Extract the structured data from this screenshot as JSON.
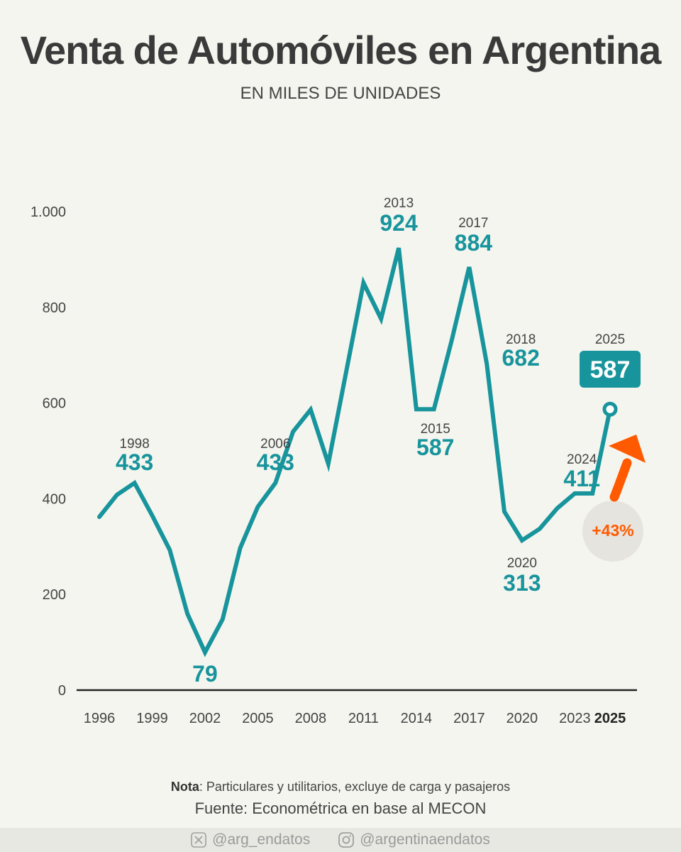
{
  "header": {
    "title": "Venta de Automóviles en Argentina",
    "subtitle": "EN MILES DE UNIDADES"
  },
  "chart_data": {
    "type": "line",
    "title": "Venta de Automóviles en Argentina",
    "subtitle": "EN MILES DE UNIDADES",
    "xlabel": "",
    "ylabel": "",
    "ylim": [
      0,
      1000
    ],
    "yticks": [
      0,
      200,
      400,
      600,
      800,
      1000
    ],
    "ytick_labels": [
      "0",
      "200",
      "400",
      "600",
      "800",
      "1.000"
    ],
    "xticks": [
      1996,
      1999,
      2002,
      2005,
      2008,
      2011,
      2014,
      2017,
      2020,
      2023,
      2025
    ],
    "xtick_labels": [
      "1996",
      "1999",
      "2002",
      "2005",
      "2008",
      "2011",
      "2014",
      "2017",
      "2020",
      "2023",
      "2025"
    ],
    "highlight_tick": "2025",
    "grid": false,
    "series": [
      {
        "color": "#17949c",
        "x": [
          1996,
          1997,
          1998,
          1999,
          2000,
          2001,
          2002,
          2003,
          2004,
          2005,
          2006,
          2007,
          2008,
          2009,
          2010,
          2011,
          2012,
          2013,
          2014,
          2015,
          2016,
          2017,
          2018,
          2019,
          2020,
          2021,
          2022,
          2023,
          2024,
          2025
        ],
        "values": [
          362,
          408,
          433,
          365,
          293,
          160,
          79,
          148,
          297,
          383,
          433,
          540,
          586,
          473,
          662,
          851,
          776,
          924,
          587,
          587,
          730,
          884,
          682,
          373,
          313,
          337,
          380,
          411,
          411,
          587
        ]
      }
    ],
    "annotations": [
      {
        "year": "1998",
        "value": "433"
      },
      {
        "year": "",
        "value": "79"
      },
      {
        "year": "2006",
        "value": "433"
      },
      {
        "year": "2013",
        "value": "924"
      },
      {
        "year": "2015",
        "value": "587"
      },
      {
        "year": "2017",
        "value": "884"
      },
      {
        "year": "2018",
        "value": "682"
      },
      {
        "year": "2020",
        "value": "313"
      },
      {
        "year": "2024",
        "value": "411"
      },
      {
        "year": "2025",
        "value": "587"
      }
    ],
    "change_badge": "+43%",
    "colors": {
      "line": "#17949c",
      "accent": "#ff5a00",
      "axis": "#222222"
    }
  },
  "footer": {
    "note_label": "Nota",
    "note_text": ": Particulares y utilitarios, excluye de carga y pasajeros",
    "source": "Fuente: Econométrica en base al MECON",
    "social_x": "@arg_endatos",
    "social_instagram": "@argentinaendatos"
  }
}
